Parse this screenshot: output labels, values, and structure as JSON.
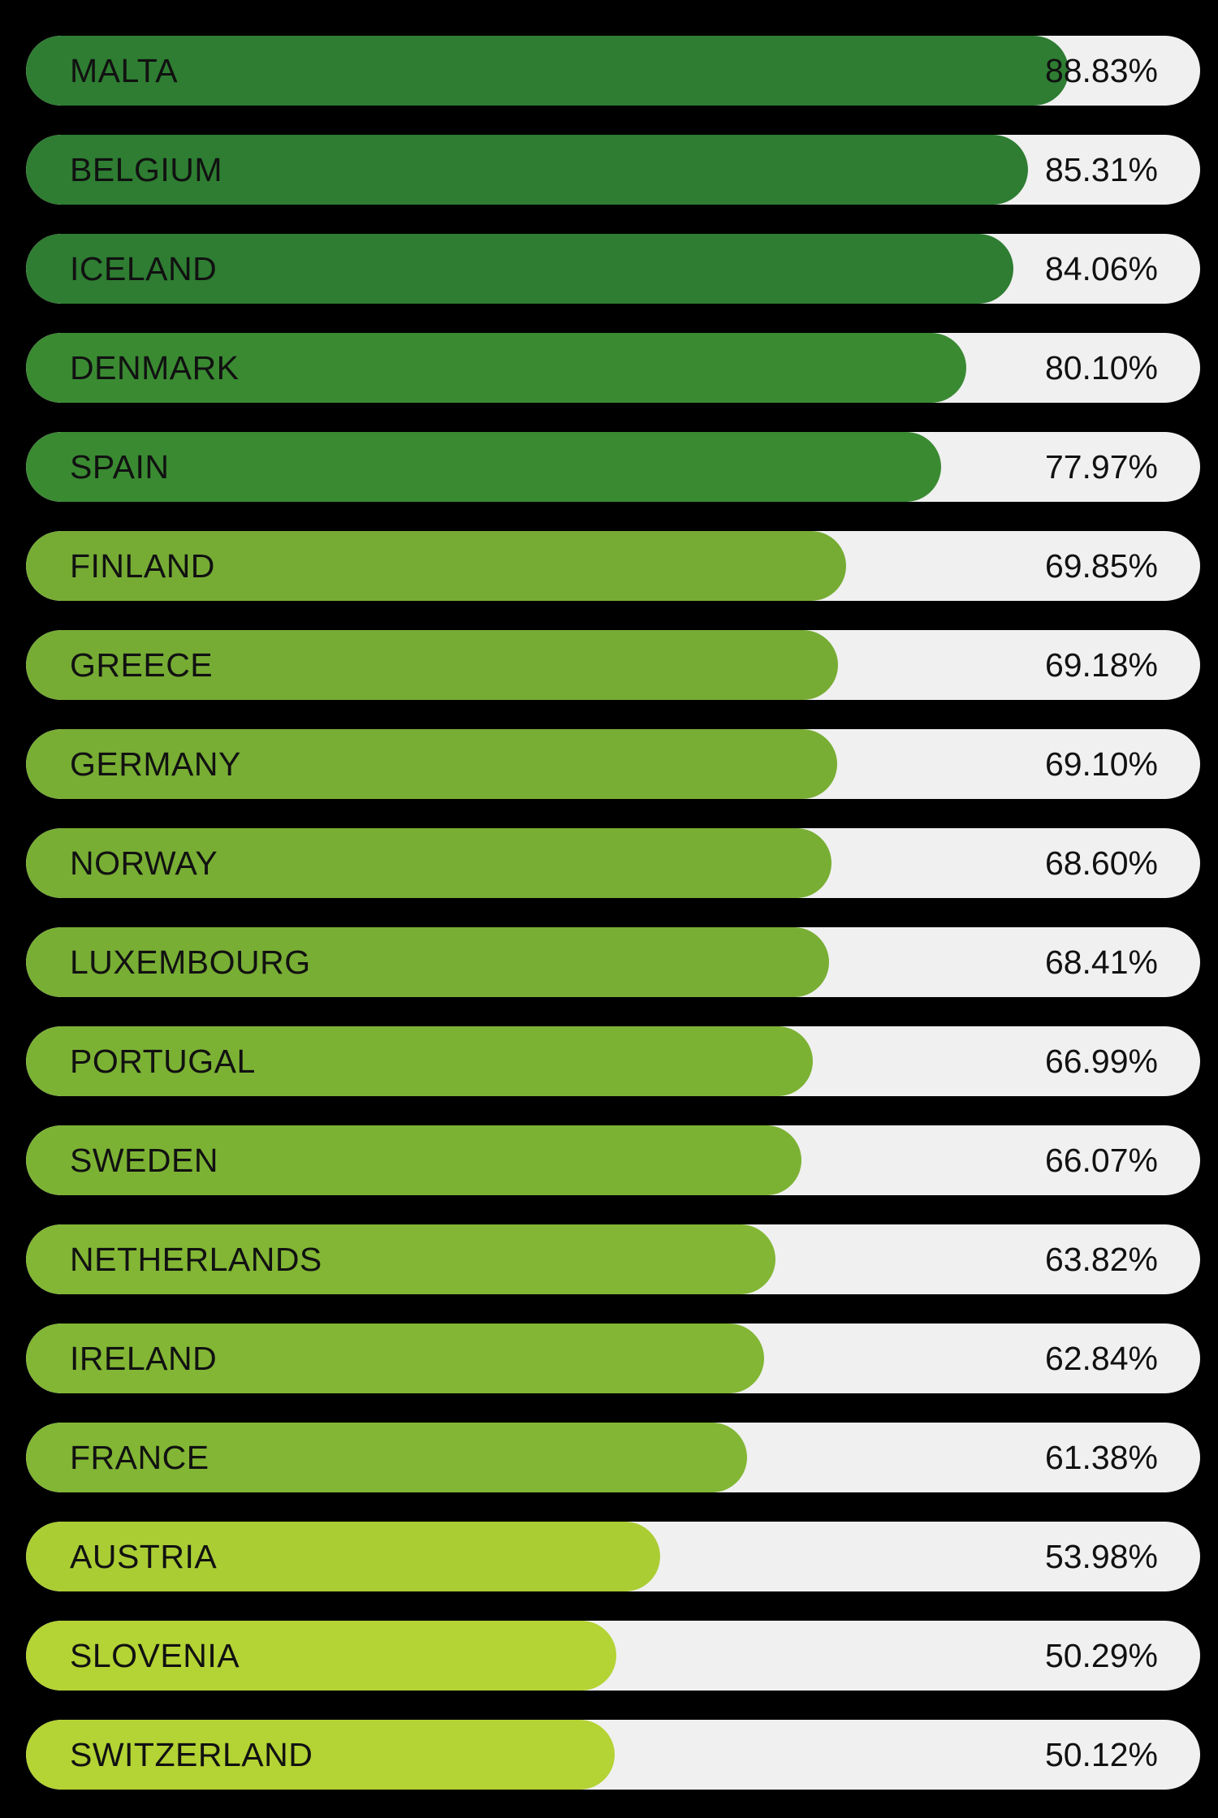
{
  "chart_data": {
    "type": "bar",
    "orientation": "horizontal",
    "categories": [
      "MALTA",
      "BELGIUM",
      "ICELAND",
      "DENMARK",
      "SPAIN",
      "FINLAND",
      "GREECE",
      "GERMANY",
      "NORWAY",
      "LUXEMBOURG",
      "PORTUGAL",
      "SWEDEN",
      "NETHERLANDS",
      "IRELAND",
      "FRANCE",
      "AUSTRIA",
      "SLOVENIA",
      "SWITZERLAND"
    ],
    "values": [
      88.83,
      85.31,
      84.06,
      80.1,
      77.97,
      69.85,
      69.18,
      69.1,
      68.6,
      68.41,
      66.99,
      66.07,
      63.82,
      62.84,
      61.38,
      53.98,
      50.29,
      50.12
    ],
    "value_labels": [
      "88.83%",
      "85.31%",
      "84.06%",
      "80.10%",
      "77.97%",
      "69.85%",
      "69.18%",
      "69.10%",
      "68.60%",
      "68.41%",
      "66.99%",
      "66.07%",
      "63.82%",
      "62.84%",
      "61.38%",
      "53.98%",
      "50.29%",
      "50.12%"
    ],
    "unit": "%",
    "xlim": [
      0,
      100
    ],
    "title": "",
    "xlabel": "",
    "ylabel": "",
    "grid": false,
    "bar_colors": [
      "#2e7d32",
      "#2e7d32",
      "#2e7d32",
      "#3a8a32",
      "#3a8a32",
      "#76ac34",
      "#76ac34",
      "#78ae34",
      "#78ae34",
      "#78ae34",
      "#7cb234",
      "#7cb234",
      "#82b634",
      "#82b634",
      "#82b634",
      "#aacd34",
      "#b4d334",
      "#b4d334"
    ],
    "track_color": "#f0f0f0",
    "background_color": "#000000"
  }
}
